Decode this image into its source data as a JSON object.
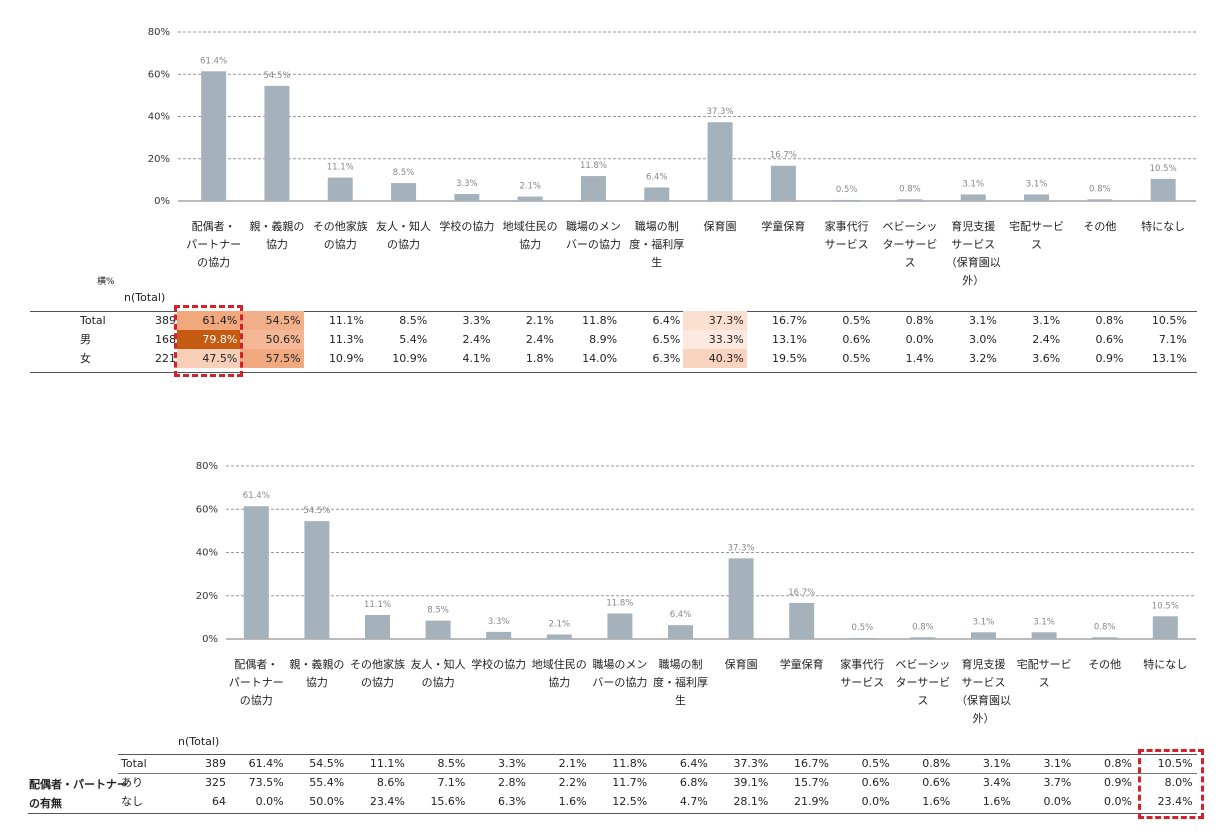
{
  "chart_data": [
    {
      "type": "bar",
      "categories": [
        "配偶者・パートナーの協力",
        "親・義親の協力",
        "その他家族の協力",
        "友人・知人の協力",
        "学校の協力",
        "地域住民の協力",
        "職場のメンバーの協力",
        "職場の制度・福利厚生",
        "保育園",
        "学童保育",
        "家事代行サービス",
        "ベビーシッターサービス",
        "育児支援サービス（保育園以外）",
        "宅配サービス",
        "その他",
        "特になし"
      ],
      "category_lines": [
        [
          "配偶者・",
          "パートナー",
          "の協力"
        ],
        [
          "親・義親の",
          "協力"
        ],
        [
          "その他家族",
          "の協力"
        ],
        [
          "友人・知人",
          "の協力"
        ],
        [
          "学校の協力"
        ],
        [
          "地域住民の",
          "協力"
        ],
        [
          "職場のメン",
          "バーの協力"
        ],
        [
          "職場の制",
          "度・福利厚",
          "生"
        ],
        [
          "保育園"
        ],
        [
          "学童保育"
        ],
        [
          "家事代行",
          "サービス"
        ],
        [
          "ベビーシッ",
          "ターサービ",
          "ス"
        ],
        [
          "育児支援",
          "サービス",
          "（保育園以",
          "外）"
        ],
        [
          "宅配サービ",
          "ス"
        ],
        [
          "その他"
        ],
        [
          "特になし"
        ]
      ],
      "values": [
        61.4,
        54.5,
        11.1,
        8.5,
        3.3,
        2.1,
        11.8,
        6.4,
        37.3,
        16.7,
        0.5,
        0.8,
        3.1,
        3.1,
        0.8,
        10.5
      ],
      "value_labels": [
        "61.4%",
        "54.5%",
        "11.1%",
        "8.5%",
        "3.3%",
        "2.1%",
        "11.8%",
        "6.4%",
        "37.3%",
        "16.7%",
        "0.5%",
        "0.8%",
        "3.1%",
        "3.1%",
        "0.8%",
        "10.5%"
      ],
      "yticks": [
        "0%",
        "20%",
        "40%",
        "60%",
        "80%"
      ],
      "ylim": [
        0,
        80
      ],
      "grid": true,
      "bar_color": "#a5b2bc"
    },
    {
      "type": "bar",
      "categories": [
        "配偶者・パートナーの協力",
        "親・義親の協力",
        "その他家族の協力",
        "友人・知人の協力",
        "学校の協力",
        "地域住民の協力",
        "職場のメンバーの協力",
        "職場の制度・福利厚生",
        "保育園",
        "学童保育",
        "家事代行サービス",
        "ベビーシッターサービス",
        "育児支援サービス（保育園以外）",
        "宅配サービス",
        "その他",
        "特になし"
      ],
      "category_lines": [
        [
          "配偶者・",
          "パートナー",
          "の協力"
        ],
        [
          "親・義親の",
          "協力"
        ],
        [
          "その他家族",
          "の協力"
        ],
        [
          "友人・知人",
          "の協力"
        ],
        [
          "学校の協力"
        ],
        [
          "地域住民の",
          "協力"
        ],
        [
          "職場のメン",
          "バーの協力"
        ],
        [
          "職場の制",
          "度・福利厚",
          "生"
        ],
        [
          "保育園"
        ],
        [
          "学童保育"
        ],
        [
          "家事代行",
          "サービス"
        ],
        [
          "ベビーシッ",
          "ターサービ",
          "ス"
        ],
        [
          "育児支援",
          "サービス",
          "（保育園以",
          "外）"
        ],
        [
          "宅配サービ",
          "ス"
        ],
        [
          "その他"
        ],
        [
          "特になし"
        ]
      ],
      "values": [
        61.4,
        54.5,
        11.1,
        8.5,
        3.3,
        2.1,
        11.8,
        6.4,
        37.3,
        16.7,
        0.5,
        0.8,
        3.1,
        3.1,
        0.8,
        10.5
      ],
      "value_labels": [
        "61.4%",
        "54.5%",
        "11.1%",
        "8.5%",
        "3.3%",
        "2.1%",
        "11.8%",
        "6.4%",
        "37.3%",
        "16.7%",
        "0.5%",
        "0.8%",
        "3.1%",
        "3.1%",
        "0.8%",
        "10.5%"
      ],
      "yticks": [
        "0%",
        "20%",
        "40%",
        "60%",
        "80%"
      ],
      "ylim": [
        0,
        80
      ],
      "grid": true,
      "bar_color": "#a5b2bc"
    }
  ],
  "table1": {
    "side_label": "横%",
    "n_header": "n(Total)",
    "rows": [
      {
        "label": "Total",
        "n": "389",
        "cells": [
          "61.4%",
          "54.5%",
          "11.1%",
          "8.5%",
          "3.3%",
          "2.1%",
          "11.8%",
          "6.4%",
          "37.3%",
          "16.7%",
          "0.5%",
          "0.8%",
          "3.1%",
          "3.1%",
          "0.8%",
          "10.5%"
        ]
      },
      {
        "label": "男",
        "n": "168",
        "cells": [
          "79.8%",
          "50.6%",
          "11.3%",
          "5.4%",
          "2.4%",
          "2.4%",
          "8.9%",
          "6.5%",
          "33.3%",
          "13.1%",
          "0.6%",
          "0.0%",
          "3.0%",
          "2.4%",
          "0.6%",
          "7.1%"
        ]
      },
      {
        "label": "女",
        "n": "221",
        "cells": [
          "47.5%",
          "57.5%",
          "10.9%",
          "10.9%",
          "4.1%",
          "1.8%",
          "14.0%",
          "6.3%",
          "40.3%",
          "19.5%",
          "0.5%",
          "1.4%",
          "3.2%",
          "3.6%",
          "0.9%",
          "13.1%"
        ]
      }
    ],
    "heat": [
      {
        "row": 0,
        "col": 0,
        "color": "#f0a87c"
      },
      {
        "row": 0,
        "col": 1,
        "color": "#f2b08a"
      },
      {
        "row": 0,
        "col": 8,
        "color": "#fbe0d2"
      },
      {
        "row": 1,
        "col": 0,
        "color": "#c55a11"
      },
      {
        "row": 1,
        "col": 1,
        "color": "#f4b896"
      },
      {
        "row": 1,
        "col": 8,
        "color": "#fde9df"
      },
      {
        "row": 2,
        "col": 0,
        "color": "#f8cfb8"
      },
      {
        "row": 2,
        "col": 1,
        "color": "#f1a97f"
      },
      {
        "row": 2,
        "col": 8,
        "color": "#f8d3bd"
      }
    ]
  },
  "table2": {
    "n_header": "n(Total)",
    "group_label": [
      "配偶者・パートナー",
      "の有無"
    ],
    "rows": [
      {
        "label": "Total",
        "n": "389",
        "cells": [
          "61.4%",
          "54.5%",
          "11.1%",
          "8.5%",
          "3.3%",
          "2.1%",
          "11.8%",
          "6.4%",
          "37.3%",
          "16.7%",
          "0.5%",
          "0.8%",
          "3.1%",
          "3.1%",
          "0.8%",
          "10.5%"
        ]
      },
      {
        "label": "あり",
        "n": "325",
        "cells": [
          "73.5%",
          "55.4%",
          "8.6%",
          "7.1%",
          "2.8%",
          "2.2%",
          "11.7%",
          "6.8%",
          "39.1%",
          "15.7%",
          "0.6%",
          "0.6%",
          "3.4%",
          "3.7%",
          "0.9%",
          "8.0%"
        ]
      },
      {
        "label": "なし",
        "n": "64",
        "cells": [
          "0.0%",
          "50.0%",
          "23.4%",
          "15.6%",
          "6.3%",
          "1.6%",
          "12.5%",
          "4.7%",
          "28.1%",
          "21.9%",
          "0.0%",
          "1.6%",
          "1.6%",
          "0.0%",
          "0.0%",
          "23.4%"
        ]
      }
    ]
  },
  "colors": {
    "bar": "#a5b2bc",
    "highlight_box": "#d6202a",
    "grid": "#999999"
  }
}
